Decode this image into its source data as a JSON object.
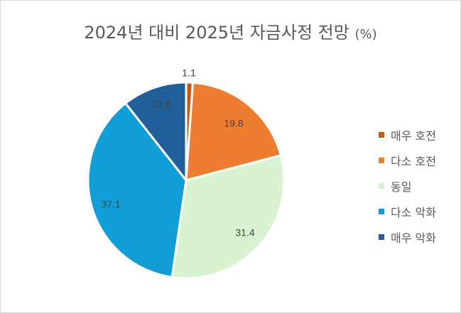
{
  "chart_data": {
    "type": "pie",
    "title": "2024년 대비 2025년 자금사정 전망",
    "title_unit": "(%)",
    "categories": [
      "매우 호전",
      "다소 호전",
      "동일",
      "다소 악화",
      "매우 악화"
    ],
    "values": [
      1.1,
      19.8,
      31.4,
      37.1,
      10.6
    ],
    "data_labels": [
      "1.1",
      "19.8",
      "31.4",
      "37.1",
      "10.6"
    ],
    "colors": [
      "#c55a11",
      "#ed7d31",
      "#d9f2d0",
      "#119ed6",
      "#215f9a"
    ],
    "legend_position": "right"
  }
}
